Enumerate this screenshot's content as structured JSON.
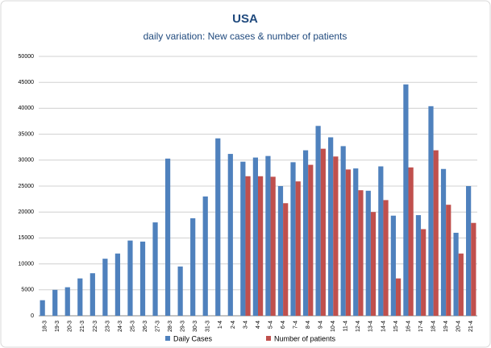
{
  "chart_data": {
    "type": "bar",
    "title": "USA",
    "subtitle": "daily variation: New cases & number of patients",
    "categories": [
      "18-3",
      "19-3",
      "20-3",
      "21-3",
      "22-3",
      "23-3",
      "24-3",
      "25-3",
      "26-3",
      "27-3",
      "28-3",
      "29-3",
      "30-3",
      "31-3",
      "1-4",
      "2-4",
      "3-4",
      "4-4",
      "5-4",
      "6-4",
      "7-4",
      "8-4",
      "9-4",
      "10-4",
      "11-4",
      "12-4",
      "13-4",
      "14-4",
      "15-4",
      "16-4",
      "17-4",
      "18-4",
      "19-4",
      "20-4",
      "21-4"
    ],
    "series": [
      {
        "name": "Daily Cases",
        "color": "#4f81bd",
        "values": [
          3000,
          5000,
          5500,
          7200,
          8200,
          11000,
          12000,
          14500,
          14300,
          18000,
          30300,
          9500,
          18800,
          23000,
          34200,
          31200,
          29700,
          30500,
          30800,
          25000,
          29600,
          31900,
          36600,
          34400,
          32700,
          28400,
          24100,
          28800,
          19300,
          44600,
          19400,
          40400,
          28300,
          16000,
          25000
        ]
      },
      {
        "name": "Number of patients",
        "color": "#c0504d",
        "values": [
          null,
          null,
          null,
          null,
          null,
          null,
          null,
          null,
          null,
          null,
          null,
          null,
          null,
          null,
          null,
          null,
          26900,
          26900,
          26800,
          21700,
          25900,
          29100,
          32200,
          30700,
          28200,
          24200,
          20000,
          22300,
          7200,
          28600,
          16700,
          31900,
          21400,
          12000,
          17900
        ]
      }
    ],
    "ylim": [
      0,
      50000
    ],
    "yticks": [
      0,
      5000,
      10000,
      15000,
      20000,
      25000,
      30000,
      35000,
      40000,
      45000,
      50000
    ],
    "grid": true,
    "legend": "bottom"
  }
}
